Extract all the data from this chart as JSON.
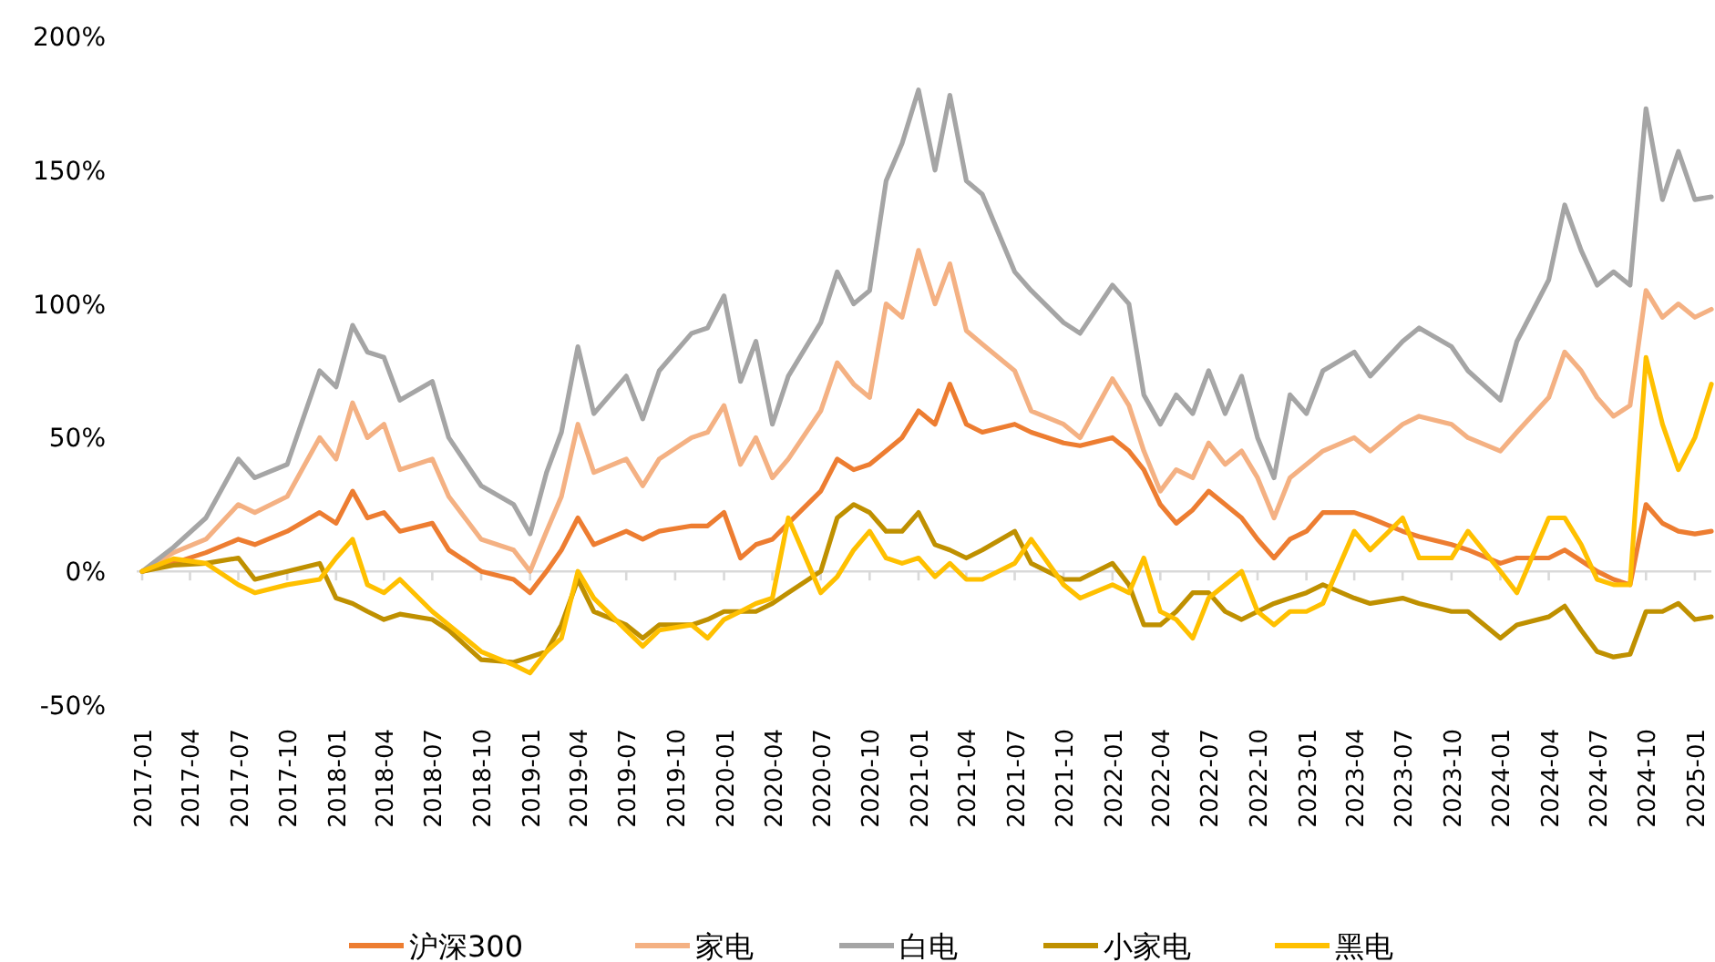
{
  "chart_data": {
    "type": "line",
    "x": [
      "2017-01",
      "2017-03",
      "2017-05",
      "2017-07",
      "2017-08",
      "2017-10",
      "2017-12",
      "2018-01",
      "2018-02",
      "2018-03",
      "2018-04",
      "2018-05",
      "2018-07",
      "2018-08",
      "2018-10",
      "2018-12",
      "2019-01",
      "2019-02",
      "2019-03",
      "2019-04",
      "2019-05",
      "2019-07",
      "2019-08",
      "2019-09",
      "2019-11",
      "2019-12",
      "2020-01",
      "2020-02",
      "2020-03",
      "2020-04",
      "2020-05",
      "2020-07",
      "2020-08",
      "2020-09",
      "2020-10",
      "2020-11",
      "2020-12",
      "2021-01",
      "2021-02",
      "2021-03",
      "2021-04",
      "2021-05",
      "2021-07",
      "2021-08",
      "2021-10",
      "2021-11",
      "2022-01",
      "2022-02",
      "2022-03",
      "2022-04",
      "2022-05",
      "2022-06",
      "2022-07",
      "2022-08",
      "2022-09",
      "2022-10",
      "2022-11",
      "2022-12",
      "2023-01",
      "2023-02",
      "2023-04",
      "2023-05",
      "2023-07",
      "2023-08",
      "2023-10",
      "2023-11",
      "2024-01",
      "2024-02",
      "2024-04",
      "2024-05",
      "2024-06",
      "2024-07",
      "2024-08",
      "2024-09",
      "2024-10",
      "2024-11",
      "2024-12",
      "2025-01",
      "2025-02"
    ],
    "series": [
      {
        "name": "沪深300",
        "color": "#ed7d31",
        "values": [
          0,
          3.1,
          7,
          12,
          10,
          15,
          22,
          18,
          30,
          20,
          22,
          15,
          18,
          8,
          0,
          -3,
          -8,
          0,
          8,
          20,
          10,
          15,
          12,
          15,
          17,
          17,
          22,
          5,
          10,
          12,
          18,
          30,
          42,
          38,
          40,
          45,
          50,
          60,
          55,
          70,
          55,
          52,
          55,
          52,
          48,
          47,
          50,
          45,
          38,
          25,
          18,
          23,
          30,
          25,
          20,
          12,
          5,
          12,
          15,
          22,
          22,
          20,
          15,
          13,
          10,
          8,
          3,
          5,
          5,
          8,
          4,
          0,
          -3,
          -5,
          25,
          18,
          15,
          14,
          15
        ]
      },
      {
        "name": "家电",
        "color": "#f4b183",
        "values": [
          0,
          7,
          12,
          25,
          22,
          28,
          50,
          42,
          63,
          50,
          55,
          38,
          42,
          28,
          12,
          8,
          0,
          15,
          28,
          55,
          37,
          42,
          32,
          42,
          50,
          52,
          62,
          40,
          50,
          35,
          42,
          60,
          78,
          70,
          65,
          100,
          95,
          120,
          100,
          115,
          90,
          85,
          75,
          60,
          55,
          50,
          72,
          62,
          45,
          30,
          38,
          35,
          48,
          40,
          45,
          35,
          20,
          35,
          40,
          45,
          50,
          45,
          55,
          58,
          55,
          50,
          45,
          52,
          65,
          82,
          75,
          65,
          58,
          62,
          105,
          95,
          100,
          95,
          98
        ]
      },
      {
        "name": "白电",
        "color": "#a5a5a5",
        "values": [
          0,
          9,
          20,
          42,
          35,
          40,
          75,
          69,
          92,
          82,
          80,
          64,
          71,
          50,
          32,
          25,
          14,
          37,
          52,
          84,
          59,
          73,
          57,
          75,
          89,
          91,
          103,
          71,
          86,
          55,
          73,
          93,
          112,
          100,
          105,
          146,
          160,
          180,
          150,
          178,
          146,
          141,
          112,
          105,
          93,
          89,
          107,
          100,
          66,
          55,
          66,
          59,
          75,
          59,
          73,
          50,
          35,
          66,
          59,
          75,
          82,
          73,
          86,
          91,
          84,
          75,
          64,
          86,
          109,
          137,
          120,
          107,
          112,
          107,
          173,
          139,
          157,
          139,
          140
        ]
      },
      {
        "name": "小家电",
        "color": "#bf9000",
        "values": [
          0,
          2.3,
          3,
          5,
          -3,
          0,
          3,
          -10,
          -12,
          -15,
          -18,
          -16,
          -18,
          -22,
          -33,
          -34,
          -32,
          -30,
          -20,
          -3,
          -15,
          -20,
          -25,
          -20,
          -20,
          -18,
          -15,
          -15,
          -15,
          -12,
          -8,
          0,
          20,
          25,
          22,
          15,
          15,
          22,
          10,
          8,
          5,
          8,
          15,
          3,
          -3,
          -3,
          3,
          -5,
          -20,
          -20,
          -15,
          -8,
          -8,
          -15,
          -18,
          -15,
          -12,
          -10,
          -8,
          -5,
          -10,
          -12,
          -10,
          -12,
          -15,
          -15,
          -25,
          -20,
          -17,
          -13,
          -22,
          -30,
          -32,
          -31,
          -15,
          -15,
          -12,
          -18,
          -17
        ]
      },
      {
        "name": "黑电",
        "color": "#ffc000",
        "values": [
          0,
          4.7,
          3,
          -5,
          -8,
          -5,
          -3,
          5,
          12,
          -5,
          -8,
          -3,
          -15,
          -20,
          -30,
          -35,
          -38,
          -30,
          -25,
          0,
          -10,
          -22,
          -28,
          -22,
          -20,
          -25,
          -18,
          -15,
          -12,
          -10,
          20,
          -8,
          -2,
          8,
          15,
          5,
          3,
          5,
          -2,
          3,
          -3,
          -3,
          3,
          12,
          -5,
          -10,
          -5,
          -8,
          5,
          -15,
          -18,
          -25,
          -10,
          -5,
          0,
          -15,
          -20,
          -15,
          -15,
          -12,
          15,
          8,
          20,
          5,
          5,
          15,
          0,
          -8,
          20,
          20,
          10,
          -3,
          -5,
          -5,
          80,
          55,
          38,
          50,
          70
        ]
      }
    ],
    "xlim": [
      "2017-01",
      "2025-02"
    ],
    "xticks": [
      {
        "value": "2017-01",
        "label": "2017-01"
      },
      {
        "value": "2017-04",
        "label": "2017-04"
      },
      {
        "value": "2017-07",
        "label": "2017-07"
      },
      {
        "value": "2017-10",
        "label": "2017-10"
      },
      {
        "value": "2018-01",
        "label": "2018-01"
      },
      {
        "value": "2018-04",
        "label": "2018-04"
      },
      {
        "value": "2018-07",
        "label": "2018-07"
      },
      {
        "value": "2018-10",
        "label": "2018-10"
      },
      {
        "value": "2019-01",
        "label": "2019-01"
      },
      {
        "value": "2019-04",
        "label": "2019-04"
      },
      {
        "value": "2019-07",
        "label": "2019-07"
      },
      {
        "value": "2019-10",
        "label": "2019-10"
      },
      {
        "value": "2020-01",
        "label": "2020-01"
      },
      {
        "value": "2020-04",
        "label": "2020-04"
      },
      {
        "value": "2020-07",
        "label": "2020-07"
      },
      {
        "value": "2020-10",
        "label": "2020-10"
      },
      {
        "value": "2021-01",
        "label": "2021-01"
      },
      {
        "value": "2021-04",
        "label": "2021-04"
      },
      {
        "value": "2021-07",
        "label": "2021-07"
      },
      {
        "value": "2021-10",
        "label": "2021-10"
      },
      {
        "value": "2022-01",
        "label": "2022-01"
      },
      {
        "value": "2022-04",
        "label": "2022-04"
      },
      {
        "value": "2022-07",
        "label": "2022-07"
      },
      {
        "value": "2022-10",
        "label": "2022-10"
      },
      {
        "value": "2023-01",
        "label": "2023-01"
      },
      {
        "value": "2023-04",
        "label": "2023-04"
      },
      {
        "value": "2023-07",
        "label": "2023-07"
      },
      {
        "value": "2023-10",
        "label": "2023-10"
      },
      {
        "value": "2024-01",
        "label": "2024-01"
      },
      {
        "value": "2024-04",
        "label": "2024-04"
      },
      {
        "value": "2024-07",
        "label": "2024-07"
      },
      {
        "value": "2024-10",
        "label": "2024-10"
      },
      {
        "value": "2025-01",
        "label": "2025-01"
      }
    ],
    "ylim": [
      -50,
      200
    ],
    "yticks": [
      {
        "value": -50,
        "label": "-50%"
      },
      {
        "value": 0,
        "label": "0%"
      },
      {
        "value": 50,
        "label": "50%"
      },
      {
        "value": 100,
        "label": "100%"
      },
      {
        "value": 150,
        "label": "150%"
      },
      {
        "value": 200,
        "label": "200%"
      }
    ],
    "legend": "bottom",
    "marker": "none",
    "line_style": "solid"
  }
}
